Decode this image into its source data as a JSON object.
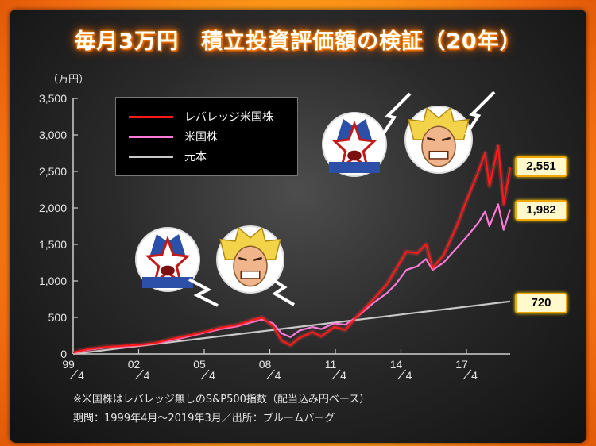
{
  "title": "毎月3万円　積立投資評価額の検証（20年）",
  "unit_label": "（万円）",
  "notes": [
    "※米国株はレバレッジ無しのS&P500指数（配当込み円ベース）",
    "期間：1999年4月〜2019年3月／出所：ブルームバーグ"
  ],
  "colors": {
    "leverage": "#ff1a1a",
    "us_stock": "#ff7ad9",
    "principal": "#c8c8c8",
    "badge_border": "#f0a800"
  },
  "chart_data": {
    "type": "line",
    "ylabel": "（万円）",
    "ylim": [
      0,
      3500
    ],
    "yticks": [
      "0",
      "500",
      "1,000",
      "1,500",
      "2,000",
      "2,500",
      "3,000",
      "3,500"
    ],
    "xticks": [
      {
        "year": "99",
        "month": "4"
      },
      {
        "year": "02",
        "month": "4"
      },
      {
        "year": "05",
        "month": "4"
      },
      {
        "year": "08",
        "month": "4"
      },
      {
        "year": "11",
        "month": "4"
      },
      {
        "year": "14",
        "month": "4"
      },
      {
        "year": "17",
        "month": "4"
      }
    ],
    "xlim": [
      1999.25,
      2019.25
    ],
    "grid": false,
    "legend": "top-left",
    "series": [
      {
        "name": "レバレッジ米国株",
        "x": [
          1999.25,
          2000.0,
          2000.7,
          2001.5,
          2002.3,
          2003.0,
          2004.0,
          2005.25,
          2006.0,
          2006.8,
          2007.5,
          2007.9,
          2008.4,
          2008.8,
          2009.2,
          2009.6,
          2010.2,
          2010.6,
          2011.2,
          2011.7,
          2012.2,
          2013.0,
          2013.6,
          2014.0,
          2014.5,
          2015.0,
          2015.4,
          2015.7,
          2016.2,
          2016.8,
          2017.25,
          2017.8,
          2018.1,
          2018.3,
          2018.7,
          2018.95,
          2019.25
        ],
        "y": [
          20,
          70,
          95,
          110,
          125,
          150,
          220,
          300,
          360,
          400,
          470,
          500,
          380,
          180,
          120,
          220,
          300,
          240,
          370,
          330,
          500,
          750,
          950,
          1150,
          1400,
          1380,
          1500,
          1180,
          1350,
          1750,
          2100,
          2500,
          2750,
          2300,
          2850,
          2050,
          2551
        ]
      },
      {
        "name": "米国株",
        "x": [
          1999.25,
          2000.0,
          2000.7,
          2001.5,
          2002.3,
          2003.0,
          2004.0,
          2005.25,
          2006.0,
          2006.8,
          2007.5,
          2007.9,
          2008.4,
          2008.8,
          2009.2,
          2009.6,
          2010.2,
          2010.6,
          2011.2,
          2011.7,
          2012.2,
          2013.0,
          2013.6,
          2014.0,
          2014.5,
          2015.0,
          2015.4,
          2015.7,
          2016.2,
          2016.8,
          2017.25,
          2017.8,
          2018.1,
          2018.3,
          2018.7,
          2018.95,
          2019.25
        ],
        "y": [
          15,
          60,
          85,
          100,
          120,
          145,
          200,
          290,
          340,
          380,
          440,
          470,
          420,
          280,
          230,
          320,
          370,
          340,
          420,
          400,
          500,
          700,
          830,
          950,
          1150,
          1200,
          1300,
          1150,
          1250,
          1450,
          1600,
          1800,
          1950,
          1750,
          2050,
          1700,
          1982
        ]
      },
      {
        "name": "元本",
        "x": [
          1999.25,
          2019.25
        ],
        "y": [
          0,
          720
        ]
      }
    ],
    "end_labels": [
      "2,551",
      "1,982",
      "720"
    ]
  }
}
